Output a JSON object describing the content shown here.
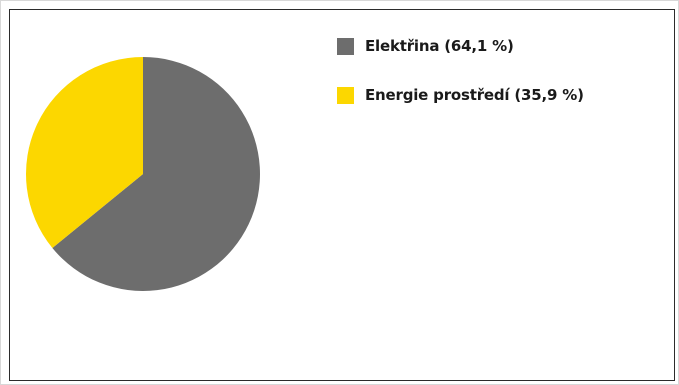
{
  "chart_data": {
    "type": "pie",
    "series": [
      {
        "name": "Elektřina",
        "value": 64.1,
        "label": "Elektřina (64,1 %)",
        "color": "#6d6d6d"
      },
      {
        "name": "Energie prostředí",
        "value": 35.9,
        "label": "Energie prostředí (35,9 %)",
        "color": "#fcd700"
      }
    ],
    "legend_position": "top-right"
  }
}
